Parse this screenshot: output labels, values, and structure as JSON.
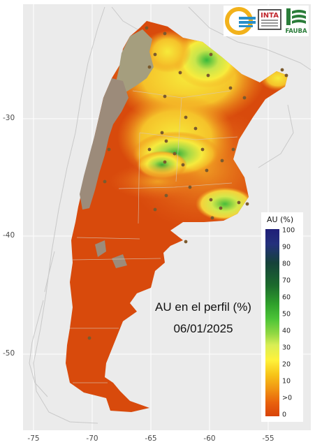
{
  "map": {
    "caption_line1": "AU en el perfil (%)",
    "caption_line2": "06/01/2025",
    "lat_ticks": [
      "-30",
      "-40",
      "-50"
    ],
    "lon_ticks": [
      "-75",
      "-70",
      "-65",
      "-60",
      "-55"
    ]
  },
  "legend": {
    "title": "AU (%)",
    "labels": [
      "100",
      "90",
      "80",
      "70",
      "60",
      "50",
      "40",
      "30",
      "20",
      "10",
      ">0",
      "0"
    ]
  },
  "logos": {
    "inta": "INTA",
    "fauba": "FAUBA"
  },
  "colors": {
    "background_panel": "#ebebeb",
    "land_dry": "#d84a0c",
    "no_data": "#9c8b7a",
    "moist_low": "#f3a320",
    "moist_mid": "#f5e83c",
    "moist_high": "#4dbf3a",
    "stations": "#7a5a2e"
  }
}
